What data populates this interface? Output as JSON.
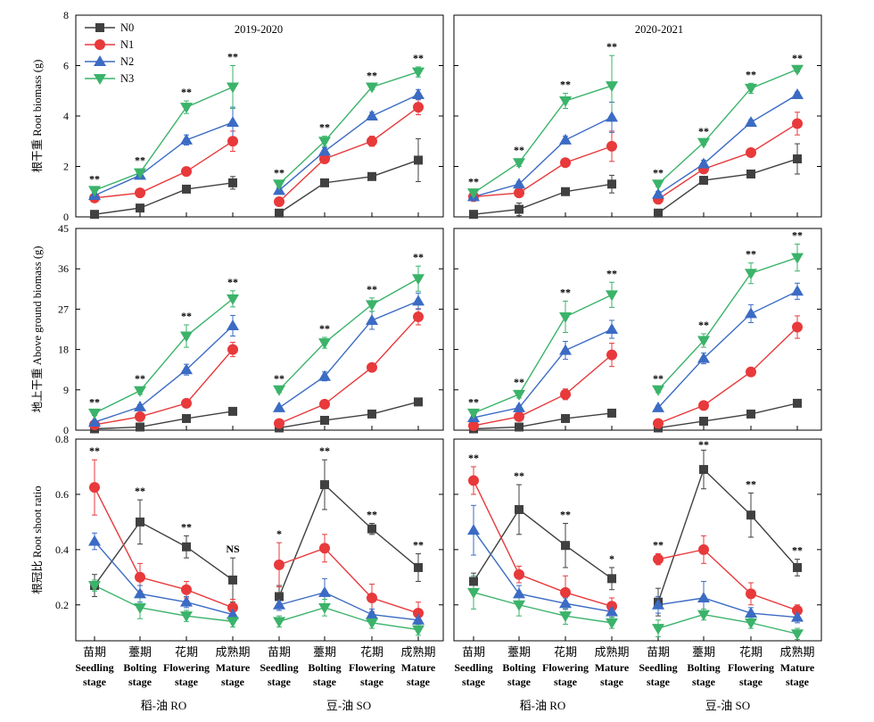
{
  "chart_data": {
    "type": "line",
    "series_names": [
      "N0",
      "N1",
      "N2",
      "N3"
    ],
    "colors": {
      "N0": "#404040",
      "N1": "#e8393b",
      "N2": "#3b6bc4",
      "N3": "#3bb36a"
    },
    "markers": {
      "N0": "square",
      "N1": "circle",
      "N2": "triangle-up",
      "N3": "triangle-down"
    },
    "legend_placement": "top-left",
    "grid": false,
    "categories_zh": [
      "苗期",
      "薹期",
      "花期",
      "成熟期"
    ],
    "categories_en_line1": [
      "Seedling",
      "Bolting",
      "Flowering",
      "Mature"
    ],
    "categories_en_line2": [
      "stage",
      "stage",
      "stage",
      "stage"
    ],
    "groups": [
      "稻-油 RO",
      "豆-油 SO"
    ],
    "columns": [
      {
        "title": "2019-2020"
      },
      {
        "title": "2020-2021"
      }
    ],
    "rows": [
      {
        "ylabel": "根干重 Root biomass (g)",
        "ylim": [
          0,
          8
        ],
        "yticks": [
          0,
          2,
          4,
          6,
          8
        ],
        "panels": [
          {
            "groups": [
              {
                "series": {
                  "N0": [
                    0.1,
                    0.35,
                    1.1,
                    1.35
                  ],
                  "N1": [
                    0.75,
                    0.95,
                    1.8,
                    3.0
                  ],
                  "N2": [
                    0.85,
                    1.65,
                    3.05,
                    3.75
                  ],
                  "N3": [
                    1.05,
                    1.75,
                    4.35,
                    5.15
                  ]
                },
                "errors": {
                  "N0": [
                    0.05,
                    0.1,
                    0.1,
                    0.25
                  ],
                  "N1": [
                    0.05,
                    0.1,
                    0.1,
                    0.4
                  ],
                  "N2": [
                    0.1,
                    0.15,
                    0.2,
                    0.6
                  ],
                  "N3": [
                    0.1,
                    0.15,
                    0.25,
                    0.85
                  ]
                },
                "sig": [
                  "**",
                  "**",
                  "**",
                  "**"
                ]
              },
              {
                "series": {
                  "N0": [
                    0.15,
                    1.35,
                    1.6,
                    2.25
                  ],
                  "N1": [
                    0.6,
                    2.3,
                    3.0,
                    4.35
                  ],
                  "N2": [
                    1.05,
                    2.6,
                    4.0,
                    4.85
                  ],
                  "N3": [
                    1.3,
                    3.0,
                    5.15,
                    5.75
                  ]
                },
                "errors": {
                  "N0": [
                    0.05,
                    0.1,
                    0.1,
                    0.85
                  ],
                  "N1": [
                    0.05,
                    0.15,
                    0.2,
                    0.3
                  ],
                  "N2": [
                    0.1,
                    0.15,
                    0.15,
                    0.2
                  ],
                  "N3": [
                    0.1,
                    0.2,
                    0.1,
                    0.2
                  ]
                },
                "sig": [
                  "**",
                  "**",
                  "**",
                  "**"
                ]
              }
            ]
          },
          {
            "groups": [
              {
                "series": {
                  "N0": [
                    0.1,
                    0.3,
                    1.0,
                    1.3
                  ],
                  "N1": [
                    0.8,
                    0.95,
                    2.15,
                    2.8
                  ],
                  "N2": [
                    0.8,
                    1.3,
                    3.05,
                    3.95
                  ],
                  "N3": [
                    0.95,
                    2.15,
                    4.6,
                    5.2
                  ]
                },
                "errors": {
                  "N0": [
                    0.05,
                    0.25,
                    0.1,
                    0.35
                  ],
                  "N1": [
                    0.05,
                    0.1,
                    0.1,
                    0.6
                  ],
                  "N2": [
                    0.1,
                    0.1,
                    0.15,
                    0.6
                  ],
                  "N3": [
                    0.1,
                    0.15,
                    0.3,
                    1.2
                  ]
                },
                "sig": [
                  "**",
                  "**",
                  "**",
                  "**"
                ]
              },
              {
                "series": {
                  "N0": [
                    0.15,
                    1.45,
                    1.7,
                    2.3
                  ],
                  "N1": [
                    0.7,
                    1.9,
                    2.55,
                    3.7
                  ],
                  "N2": [
                    0.9,
                    2.1,
                    3.75,
                    4.85
                  ],
                  "N3": [
                    1.3,
                    2.95,
                    5.1,
                    5.85
                  ]
                },
                "errors": {
                  "N0": [
                    0.05,
                    0.1,
                    0.1,
                    0.6
                  ],
                  "N1": [
                    0.05,
                    0.15,
                    0.1,
                    0.45
                  ],
                  "N2": [
                    0.1,
                    0.15,
                    0.1,
                    0.1
                  ],
                  "N3": [
                    0.1,
                    0.1,
                    0.2,
                    0.1
                  ]
                },
                "sig": [
                  "**",
                  "**",
                  "**",
                  "**"
                ]
              }
            ]
          }
        ]
      },
      {
        "ylabel": "地上干重 Above ground biomass (g)",
        "ylim": [
          0,
          45
        ],
        "yticks": [
          0,
          9,
          18,
          27,
          36,
          45
        ],
        "panels": [
          {
            "groups": [
              {
                "series": {
                  "N0": [
                    0.3,
                    0.7,
                    2.6,
                    4.2
                  ],
                  "N1": [
                    1.2,
                    3.0,
                    6.0,
                    18.0
                  ],
                  "N2": [
                    1.8,
                    5.2,
                    13.5,
                    23.3
                  ],
                  "N3": [
                    3.8,
                    8.8,
                    21.0,
                    29.3
                  ]
                },
                "errors": {
                  "N0": [
                    0.1,
                    0.2,
                    0.3,
                    0.6
                  ],
                  "N1": [
                    0.2,
                    0.3,
                    0.5,
                    1.6
                  ],
                  "N2": [
                    0.3,
                    0.5,
                    1.2,
                    2.3
                  ],
                  "N3": [
                    0.5,
                    0.8,
                    2.5,
                    1.8
                  ]
                },
                "sig": [
                  "**",
                  "**",
                  "**",
                  "**"
                ]
              },
              {
                "series": {
                  "N0": [
                    0.5,
                    2.2,
                    3.6,
                    6.3
                  ],
                  "N1": [
                    1.5,
                    5.8,
                    14.0,
                    25.3
                  ],
                  "N2": [
                    5.0,
                    12.0,
                    24.5,
                    28.8
                  ],
                  "N3": [
                    9.0,
                    19.5,
                    28.0,
                    33.8
                  ]
                },
                "errors": {
                  "N0": [
                    0.1,
                    0.3,
                    0.4,
                    0.7
                  ],
                  "N1": [
                    0.2,
                    0.5,
                    0.8,
                    1.8
                  ],
                  "N2": [
                    0.4,
                    1.0,
                    2.0,
                    1.8
                  ],
                  "N3": [
                    0.6,
                    1.2,
                    1.5,
                    2.8
                  ]
                },
                "sig": [
                  "**",
                  "**",
                  "**",
                  "**"
                ]
              }
            ]
          },
          {
            "groups": [
              {
                "series": {
                  "N0": [
                    0.3,
                    0.7,
                    2.6,
                    3.8
                  ],
                  "N1": [
                    1.0,
                    3.0,
                    8.0,
                    16.8
                  ],
                  "N2": [
                    2.8,
                    5.0,
                    17.8,
                    22.5
                  ],
                  "N3": [
                    3.8,
                    8.0,
                    25.3,
                    30.2
                  ]
                },
                "errors": {
                  "N0": [
                    0.1,
                    0.2,
                    0.3,
                    0.5
                  ],
                  "N1": [
                    0.2,
                    0.3,
                    1.2,
                    2.6
                  ],
                  "N2": [
                    0.3,
                    0.5,
                    2.0,
                    2.0
                  ],
                  "N3": [
                    0.5,
                    0.8,
                    3.5,
                    2.8
                  ]
                },
                "sig": [
                  "**",
                  "**",
                  "**",
                  "**"
                ]
              },
              {
                "series": {
                  "N0": [
                    0.5,
                    2.0,
                    3.6,
                    6.0
                  ],
                  "N1": [
                    1.5,
                    5.5,
                    13.0,
                    23.0
                  ],
                  "N2": [
                    5.0,
                    16.0,
                    26.0,
                    31.0
                  ],
                  "N3": [
                    9.0,
                    20.0,
                    35.0,
                    38.5
                  ]
                },
                "errors": {
                  "N0": [
                    0.1,
                    0.3,
                    0.4,
                    0.6
                  ],
                  "N1": [
                    0.2,
                    0.5,
                    0.8,
                    2.5
                  ],
                  "N2": [
                    0.5,
                    1.2,
                    2.0,
                    1.8
                  ],
                  "N3": [
                    0.6,
                    1.5,
                    2.3,
                    3.0
                  ]
                },
                "sig": [
                  "**",
                  "**",
                  "**",
                  "**"
                ]
              }
            ]
          }
        ]
      },
      {
        "ylabel": "根冠比 Root shoot ratio",
        "ylim": [
          0.07,
          0.8
        ],
        "yticks": [
          0.2,
          0.4,
          0.6,
          0.8
        ],
        "panels": [
          {
            "groups": [
              {
                "series": {
                  "N0": [
                    0.27,
                    0.5,
                    0.41,
                    0.29
                  ],
                  "N1": [
                    0.625,
                    0.3,
                    0.255,
                    0.19
                  ],
                  "N2": [
                    0.43,
                    0.24,
                    0.21,
                    0.165
                  ],
                  "N3": [
                    0.27,
                    0.19,
                    0.16,
                    0.14
                  ]
                },
                "errors": {
                  "N0": [
                    0.04,
                    0.08,
                    0.04,
                    0.08
                  ],
                  "N1": [
                    0.1,
                    0.05,
                    0.03,
                    0.03
                  ],
                  "N2": [
                    0.03,
                    0.03,
                    0.02,
                    0.02
                  ],
                  "N3": [
                    0.02,
                    0.04,
                    0.02,
                    0.02
                  ]
                },
                "sig": [
                  "**",
                  "**",
                  "**",
                  "NS"
                ]
              },
              {
                "series": {
                  "N0": [
                    0.23,
                    0.635,
                    0.475,
                    0.335
                  ],
                  "N1": [
                    0.345,
                    0.405,
                    0.225,
                    0.17
                  ],
                  "N2": [
                    0.2,
                    0.245,
                    0.165,
                    0.145
                  ],
                  "N3": [
                    0.14,
                    0.19,
                    0.135,
                    0.11
                  ]
                },
                "errors": {
                  "N0": [
                    0.04,
                    0.09,
                    0.02,
                    0.05
                  ],
                  "N1": [
                    0.08,
                    0.05,
                    0.05,
                    0.04
                  ],
                  "N2": [
                    0.02,
                    0.05,
                    0.02,
                    0.02
                  ],
                  "N3": [
                    0.02,
                    0.03,
                    0.02,
                    0.02
                  ]
                },
                "sig": [
                  "*",
                  "**",
                  "**",
                  "**"
                ]
              }
            ]
          },
          {
            "groups": [
              {
                "series": {
                  "N0": [
                    0.285,
                    0.545,
                    0.415,
                    0.295
                  ],
                  "N1": [
                    0.65,
                    0.31,
                    0.245,
                    0.195
                  ],
                  "N2": [
                    0.47,
                    0.24,
                    0.205,
                    0.175
                  ],
                  "N3": [
                    0.245,
                    0.2,
                    0.16,
                    0.135
                  ]
                },
                "errors": {
                  "N0": [
                    0.03,
                    0.09,
                    0.08,
                    0.04
                  ],
                  "N1": [
                    0.05,
                    0.03,
                    0.06,
                    0.03
                  ],
                  "N2": [
                    0.09,
                    0.03,
                    0.02,
                    0.02
                  ],
                  "N3": [
                    0.06,
                    0.04,
                    0.03,
                    0.02
                  ]
                },
                "sig": [
                  "**",
                  "**",
                  "**",
                  "*"
                ]
              },
              {
                "series": {
                  "N0": [
                    0.21,
                    0.69,
                    0.525,
                    0.335
                  ],
                  "N1": [
                    0.365,
                    0.4,
                    0.24,
                    0.18
                  ],
                  "N2": [
                    0.2,
                    0.225,
                    0.17,
                    0.155
                  ],
                  "N3": [
                    0.115,
                    0.165,
                    0.135,
                    0.095
                  ]
                },
                "errors": {
                  "N0": [
                    0.05,
                    0.07,
                    0.08,
                    0.03
                  ],
                  "N1": [
                    0.02,
                    0.05,
                    0.04,
                    0.02
                  ],
                  "N2": [
                    0.03,
                    0.06,
                    0.02,
                    0.02
                  ],
                  "N3": [
                    0.03,
                    0.02,
                    0.02,
                    0.02
                  ]
                },
                "sig": [
                  "**",
                  "**",
                  "**",
                  "**"
                ]
              }
            ]
          }
        ]
      }
    ]
  }
}
